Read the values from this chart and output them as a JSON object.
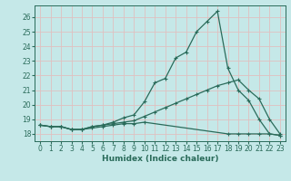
{
  "xlabel": "Humidex (Indice chaleur)",
  "bg_color": "#c5e8e8",
  "grid_color": "#e0c0c0",
  "line_color": "#2a6b5a",
  "xlim": [
    -0.5,
    23.5
  ],
  "ylim": [
    17.5,
    26.8
  ],
  "xticks": [
    0,
    1,
    2,
    3,
    4,
    5,
    6,
    7,
    8,
    9,
    10,
    11,
    12,
    13,
    14,
    15,
    16,
    17,
    18,
    19,
    20,
    21,
    22,
    23
  ],
  "yticks": [
    18,
    19,
    20,
    21,
    22,
    23,
    24,
    25,
    26
  ],
  "curve1_x": [
    0,
    1,
    2,
    3,
    4,
    5,
    6,
    7,
    8,
    9,
    10,
    11,
    12,
    13,
    14,
    15,
    16,
    17,
    18,
    19,
    20,
    21,
    22,
    23
  ],
  "curve1_y": [
    18.6,
    18.5,
    18.5,
    18.3,
    18.3,
    18.5,
    18.6,
    18.8,
    19.1,
    19.3,
    20.2,
    21.5,
    21.8,
    23.2,
    23.6,
    25.0,
    25.7,
    26.4,
    22.5,
    21.0,
    20.3,
    19.0,
    18.0,
    17.9
  ],
  "curve2_x": [
    0,
    1,
    2,
    3,
    4,
    5,
    6,
    7,
    8,
    9,
    10,
    11,
    12,
    13,
    14,
    15,
    16,
    17,
    18,
    19,
    20,
    21,
    22,
    23
  ],
  "curve2_y": [
    18.6,
    18.5,
    18.5,
    18.3,
    18.3,
    18.5,
    18.6,
    18.7,
    18.8,
    18.9,
    19.2,
    19.5,
    19.8,
    20.1,
    20.4,
    20.7,
    21.0,
    21.3,
    21.5,
    21.7,
    21.0,
    20.4,
    19.0,
    18.0
  ],
  "curve3_x": [
    0,
    1,
    2,
    3,
    4,
    5,
    6,
    7,
    8,
    9,
    10,
    18,
    19,
    20,
    21,
    22,
    23
  ],
  "curve3_y": [
    18.6,
    18.5,
    18.5,
    18.3,
    18.3,
    18.4,
    18.5,
    18.6,
    18.7,
    18.7,
    18.8,
    18.0,
    18.0,
    18.0,
    18.0,
    18.0,
    17.9
  ]
}
